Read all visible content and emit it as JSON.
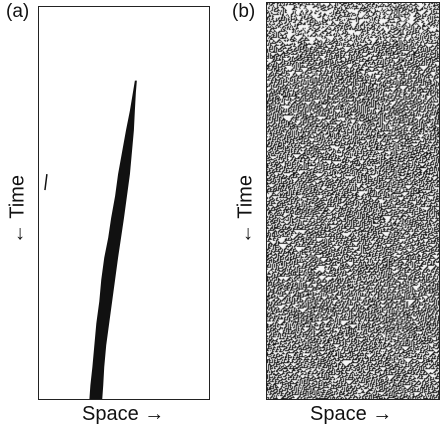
{
  "panels": [
    {
      "label": "(a)",
      "y_axis_label": "← Time",
      "x_axis_label": "Space →"
    },
    {
      "label": "(b)",
      "y_axis_label": "← Time",
      "x_axis_label": "Space →"
    }
  ],
  "colors": {
    "ink": "#111111",
    "background": "#ffffff"
  }
}
